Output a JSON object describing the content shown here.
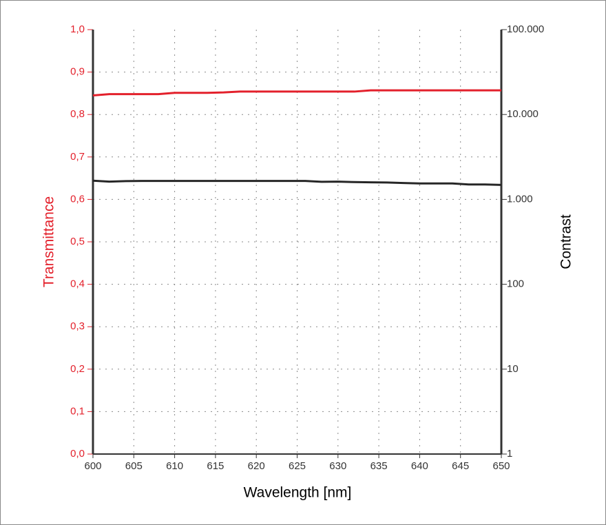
{
  "chart_data": {
    "type": "line",
    "xlabel": "Wavelength [nm]",
    "ylabel": "Transmittance",
    "y2label": "Contrast",
    "x": [
      600,
      602,
      604,
      606,
      608,
      610,
      612,
      614,
      616,
      618,
      620,
      622,
      624,
      626,
      628,
      630,
      632,
      634,
      636,
      638,
      640,
      642,
      644,
      646,
      648,
      650
    ],
    "series": [
      {
        "name": "Transmittance",
        "color": "#e3202b",
        "values": [
          0.845,
          0.848,
          0.848,
          0.848,
          0.848,
          0.851,
          0.851,
          0.851,
          0.852,
          0.854,
          0.854,
          0.854,
          0.854,
          0.854,
          0.854,
          0.854,
          0.854,
          0.857,
          0.857,
          0.857,
          0.857,
          0.857,
          0.857,
          0.857,
          0.857,
          0.857
        ]
      },
      {
        "name": "Contrast",
        "color": "#262626",
        "axis": "y2",
        "values": [
          1660,
          1620,
          1640,
          1650,
          1650,
          1650,
          1650,
          1650,
          1650,
          1650,
          1650,
          1650,
          1650,
          1650,
          1610,
          1620,
          1600,
          1590,
          1580,
          1560,
          1540,
          1540,
          1540,
          1500,
          1500,
          1480
        ]
      }
    ],
    "xlim": [
      600,
      650
    ],
    "xticks": [
      600,
      605,
      610,
      615,
      620,
      625,
      630,
      635,
      640,
      645,
      650
    ],
    "ylim": [
      0,
      1
    ],
    "yticks": [
      {
        "value": 0,
        "label": "0,0"
      },
      {
        "value": 0.1,
        "label": "0,1"
      },
      {
        "value": 0.2,
        "label": "0,2"
      },
      {
        "value": 0.3,
        "label": "0,3"
      },
      {
        "value": 0.4,
        "label": "0,4"
      },
      {
        "value": 0.5,
        "label": "0,5"
      },
      {
        "value": 0.6,
        "label": "0,6"
      },
      {
        "value": 0.7,
        "label": "0,7"
      },
      {
        "value": 0.8,
        "label": "0,8"
      },
      {
        "value": 0.9,
        "label": "0,9"
      },
      {
        "value": 1,
        "label": "1,0"
      }
    ],
    "y2lim": [
      1,
      100000
    ],
    "y2scale": "log",
    "y2ticks": [
      1,
      10,
      100,
      {
        "value": 1000,
        "label": "1.000"
      },
      {
        "value": 10000,
        "label": "10.000"
      },
      {
        "value": 100000,
        "label": "100.000"
      }
    ],
    "grid": true
  }
}
